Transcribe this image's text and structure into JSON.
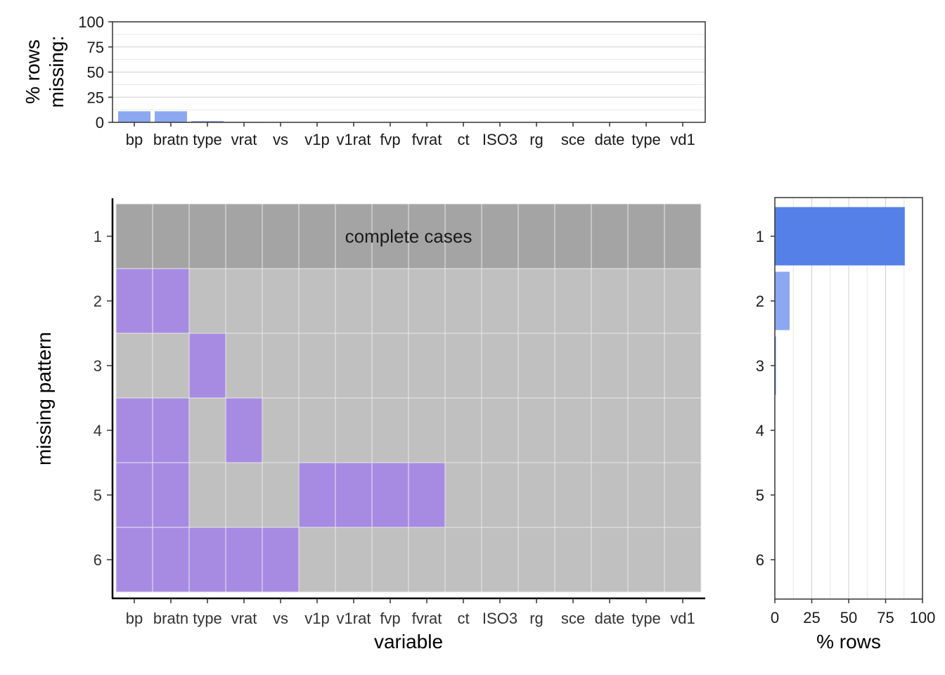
{
  "chart_data": [
    {
      "type": "bar",
      "ylabel": "% rows\nmissing:",
      "ylim": [
        0,
        100
      ],
      "y_ticks": [
        0,
        25,
        50,
        75,
        100
      ],
      "categories": [
        "bp",
        "bratn",
        "type",
        "vrat",
        "vs",
        "v1p",
        "v1rat",
        "fvp",
        "fvrat",
        "ct",
        "ISO3",
        "rg",
        "sce",
        "date",
        "type",
        "vd1"
      ],
      "tick_labels": [
        "bp",
        "bratn",
        "type",
        "vrat",
        "vs",
        "v1p",
        "v1rat",
        "fvp",
        "fvrat",
        "ct",
        "ISO3",
        "rg",
        "sce",
        "date",
        "type",
        "vd1"
      ],
      "values": [
        11,
        11,
        1.3,
        0.4,
        0.2,
        0.1,
        0.1,
        0.1,
        0.1,
        0,
        0,
        0,
        0,
        0,
        0,
        0
      ],
      "bar_color": "#8ca8f0",
      "grid": true
    },
    {
      "type": "heatmap",
      "xlabel": "variable",
      "ylabel": "missing pattern",
      "x_tick_labels": [
        "bp",
        "bratn",
        "type",
        "vrat",
        "vs",
        "v1p",
        "v1rat",
        "fvp",
        "fvrat",
        "ct",
        "ISO3",
        "rg",
        "sce",
        "date",
        "type",
        "vd1"
      ],
      "rows": [
        "1",
        "2",
        "3",
        "4",
        "5",
        "6"
      ],
      "missing": [
        [
          0,
          0,
          0,
          0,
          0,
          0,
          0,
          0,
          0,
          0,
          0,
          0,
          0,
          0,
          0,
          0
        ],
        [
          1,
          1,
          0,
          0,
          0,
          0,
          0,
          0,
          0,
          0,
          0,
          0,
          0,
          0,
          0,
          0
        ],
        [
          0,
          0,
          1,
          0,
          0,
          0,
          0,
          0,
          0,
          0,
          0,
          0,
          0,
          0,
          0,
          0
        ],
        [
          1,
          1,
          0,
          1,
          0,
          0,
          0,
          0,
          0,
          0,
          0,
          0,
          0,
          0,
          0,
          0
        ],
        [
          1,
          1,
          0,
          0,
          0,
          1,
          1,
          1,
          1,
          0,
          0,
          0,
          0,
          0,
          0,
          0
        ],
        [
          1,
          1,
          1,
          1,
          1,
          0,
          0,
          0,
          0,
          0,
          0,
          0,
          0,
          0,
          0,
          0
        ]
      ],
      "annotation": "complete cases",
      "colors": {
        "missing": "#a78be3",
        "present": "#c0c0c0",
        "complete": "#a4a4a4"
      }
    },
    {
      "type": "bar",
      "orientation": "horizontal",
      "xlabel": "% rows",
      "xlim": [
        0,
        100
      ],
      "x_ticks": [
        0,
        25,
        50,
        75,
        100
      ],
      "categories": [
        "1",
        "2",
        "3",
        "4",
        "5",
        "6"
      ],
      "values": [
        88,
        10,
        0.7,
        0.2,
        0.1,
        0.1
      ],
      "colors": [
        "#5580e8",
        "#8ca8f0",
        "#5580e8",
        "#5580e8",
        "#5580e8",
        "#5580e8"
      ],
      "grid": true
    }
  ]
}
